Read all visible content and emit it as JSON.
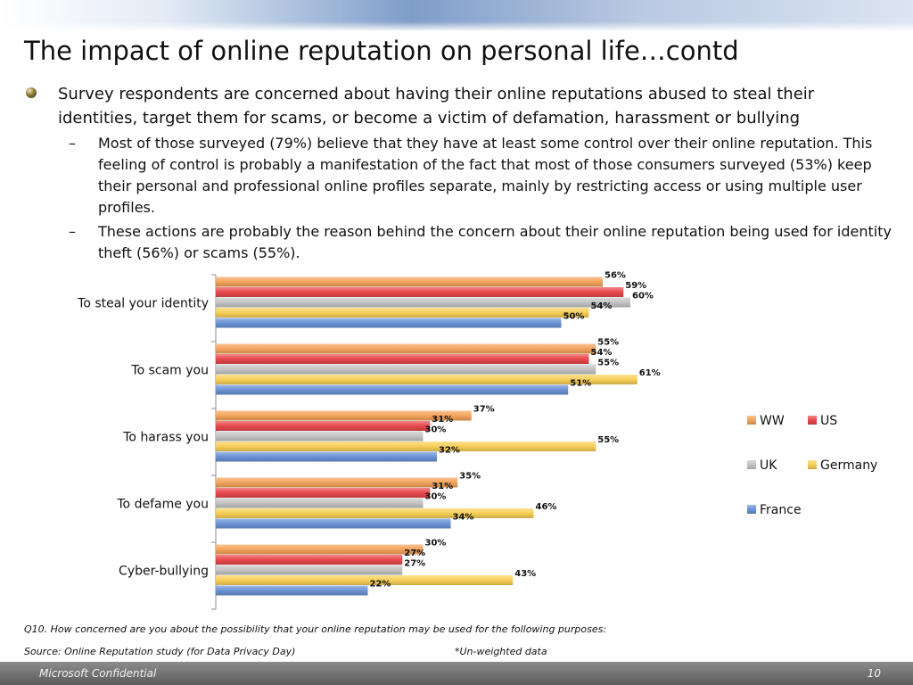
{
  "slide": {
    "title": "The impact of online reputation on personal life…contd",
    "bullet1": "Survey respondents are concerned about having their online reputations abused to steal their identities, target them for scams, or become a victim of defamation, harassment  or bullying",
    "dash_symbol": "–",
    "sub1": "Most of those surveyed (79%) believe that they have at least some control over their online reputation. This feeling of control is probably a manifestation of the fact that most of those consumers surveyed (53%) keep their personal and professional online profiles separate, mainly by restricting access or using multiple user profiles.",
    "sub2": "These actions are probably the reason behind the concern about their online reputation being used for identity theft (56%) or scams (55%).",
    "question": "Q10. How concerned are you about the possibility that your online reputation may be used for the following purposes:",
    "source": "Source: Online Reputation study (for Data Privacy Day)",
    "note": "*Un-weighted data",
    "footer_text": "Microsoft Confidential",
    "page_number": "10"
  },
  "chart_data": {
    "type": "bar",
    "orientation": "horizontal",
    "categories": [
      "To steal your identity",
      "To scam you",
      "To harass you",
      "To defame you",
      "Cyber-bullying"
    ],
    "series": [
      {
        "name": "WW",
        "color": "#f4a35a",
        "values": [
          56,
          55,
          37,
          35,
          30
        ]
      },
      {
        "name": "US",
        "color": "#e8484c",
        "values": [
          59,
          54,
          31,
          31,
          27
        ]
      },
      {
        "name": "UK",
        "color": "#c4c4c4",
        "values": [
          60,
          55,
          30,
          30,
          27
        ]
      },
      {
        "name": "Germany",
        "color": "#f7cf57",
        "values": [
          54,
          61,
          55,
          46,
          43
        ]
      },
      {
        "name": "France",
        "color": "#6b93d6",
        "values": [
          50,
          51,
          32,
          34,
          22
        ]
      }
    ],
    "value_suffix": "%",
    "xlim": [
      0,
      100
    ],
    "grid": false,
    "legend_position": "right"
  }
}
